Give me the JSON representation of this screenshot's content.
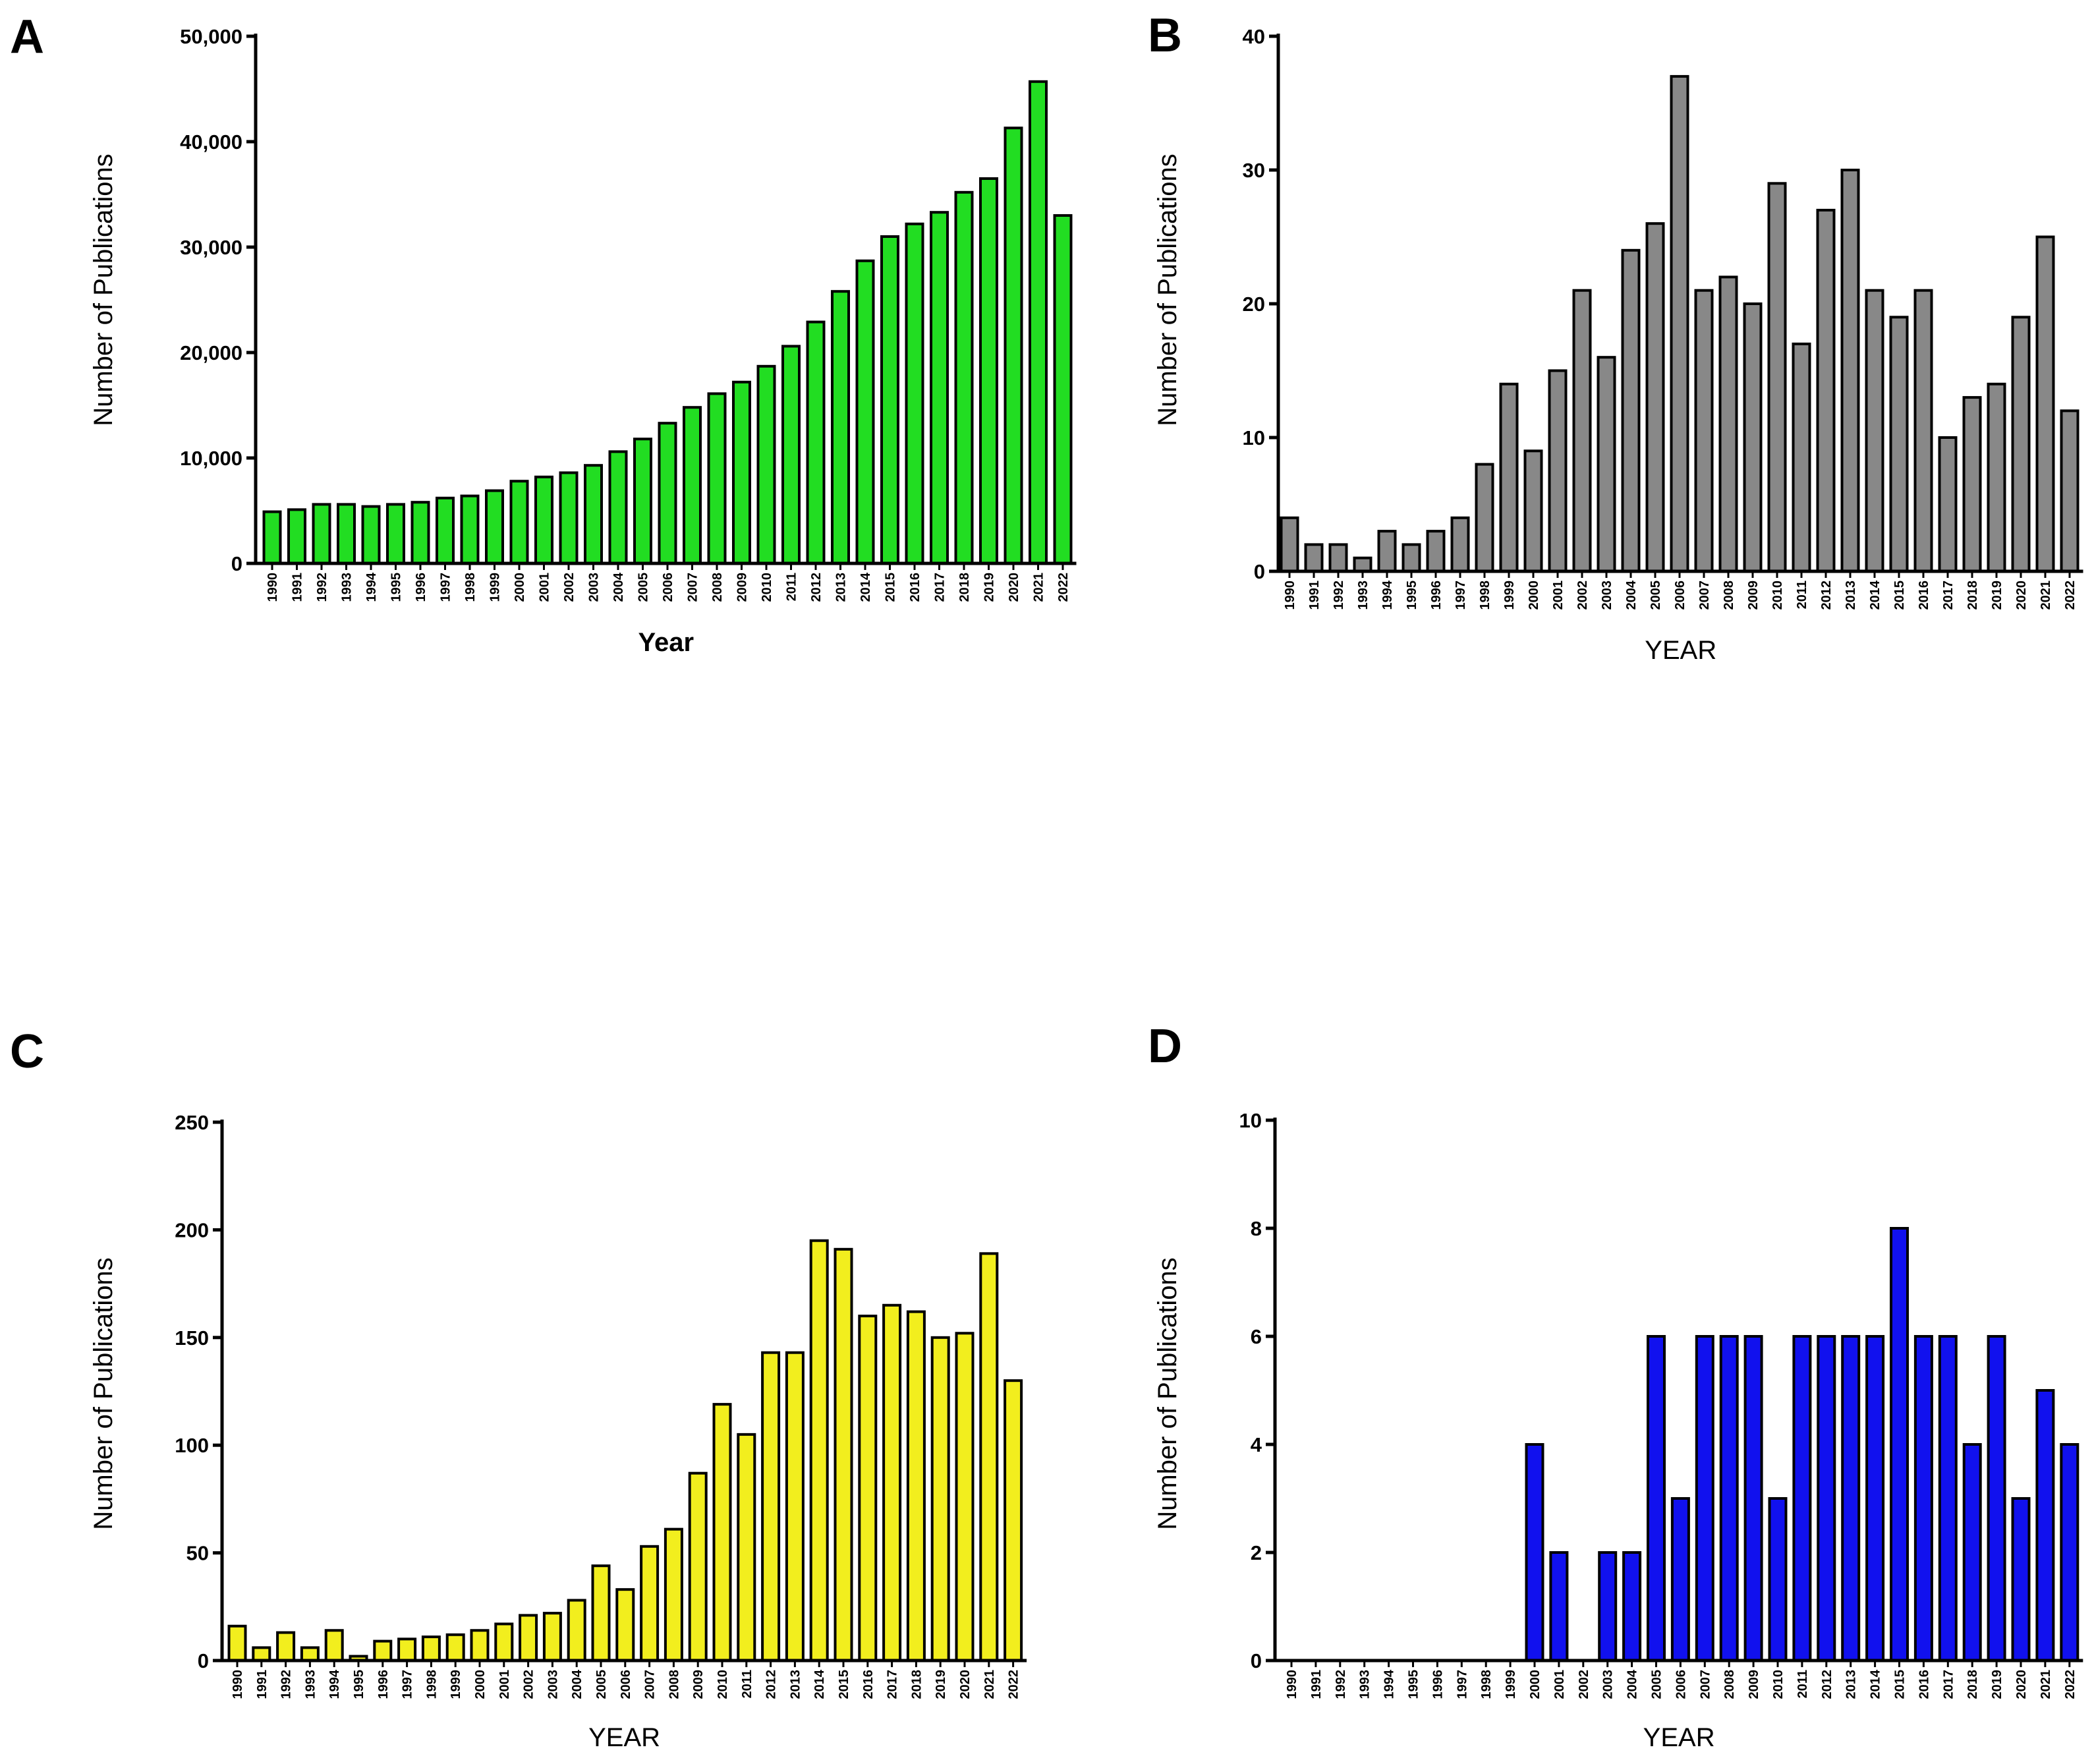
{
  "chart_data": [
    {
      "panel": "A",
      "type": "bar",
      "color": "#22dd22",
      "ylabel": "Number of Publications",
      "xlabel": "Year",
      "ylim": [
        0,
        50000
      ],
      "yticks": [
        0,
        10000,
        20000,
        30000,
        40000,
        50000
      ],
      "ytick_labels": [
        "0",
        "10,000",
        "20,000",
        "30,000",
        "40,000",
        "50,000"
      ],
      "categories": [
        "1990",
        "1991",
        "1992",
        "1993",
        "1994",
        "1995",
        "1996",
        "1997",
        "1998",
        "1999",
        "2000",
        "2001",
        "2002",
        "2003",
        "2004",
        "2005",
        "2006",
        "2007",
        "2008",
        "2009",
        "2010",
        "2011",
        "2012",
        "2013",
        "2014",
        "2015",
        "2016",
        "2017",
        "2018",
        "2019",
        "2020",
        "2021",
        "2022"
      ],
      "values": [
        4900,
        5100,
        5600,
        5600,
        5400,
        5600,
        5800,
        6200,
        6400,
        6900,
        7800,
        8200,
        8600,
        9300,
        10600,
        11800,
        13300,
        14800,
        16100,
        17200,
        18700,
        20600,
        22900,
        25800,
        28700,
        31000,
        32200,
        33300,
        35200,
        36500,
        41300,
        45700,
        33000
      ]
    },
    {
      "panel": "B",
      "type": "bar",
      "color": "#888888",
      "ylabel": "Number of Publications",
      "xlabel": "YEAR",
      "ylim": [
        0,
        40
      ],
      "yticks": [
        0,
        10,
        20,
        30,
        40
      ],
      "ytick_labels": [
        "0",
        "10",
        "20",
        "30",
        "40"
      ],
      "categories": [
        "1990",
        "1991",
        "1992",
        "1993",
        "1994",
        "1995",
        "1996",
        "1997",
        "1998",
        "1999",
        "2000",
        "2001",
        "2002",
        "2003",
        "2004",
        "2005",
        "2006",
        "2007",
        "2008",
        "2009",
        "2010",
        "2011",
        "2012",
        "2013",
        "2014",
        "2015",
        "2016",
        "2017",
        "2018",
        "2019",
        "2020",
        "2021",
        "2022"
      ],
      "values": [
        4,
        2,
        2,
        1,
        3,
        2,
        3,
        4,
        8,
        14,
        9,
        15,
        21,
        16,
        24,
        26,
        37,
        21,
        22,
        20,
        29,
        17,
        27,
        30,
        21,
        19,
        21,
        10,
        13,
        14,
        19,
        25,
        12
      ]
    },
    {
      "panel": "C",
      "type": "bar",
      "color": "#f2ee1e",
      "ylabel": "Number of Publications",
      "xlabel": "YEAR",
      "ylim": [
        0,
        250
      ],
      "yticks": [
        0,
        50,
        100,
        150,
        200,
        250
      ],
      "ytick_labels": [
        "0",
        "50",
        "100",
        "150",
        "200",
        "250"
      ],
      "categories": [
        "1990",
        "1991",
        "1992",
        "1993",
        "1994",
        "1995",
        "1996",
        "1997",
        "1998",
        "1999",
        "2000",
        "2001",
        "2002",
        "2003",
        "2004",
        "2005",
        "2006",
        "2007",
        "2008",
        "2009",
        "2010",
        "2011",
        "2012",
        "2013",
        "2014",
        "2015",
        "2016",
        "2017",
        "2018",
        "2019",
        "2020",
        "2021",
        "2022"
      ],
      "values": [
        16,
        6,
        13,
        6,
        14,
        2,
        9,
        10,
        11,
        12,
        14,
        17,
        21,
        22,
        28,
        44,
        33,
        53,
        61,
        87,
        119,
        105,
        143,
        143,
        195,
        191,
        160,
        165,
        162,
        150,
        152,
        189,
        130
      ]
    },
    {
      "panel": "D",
      "type": "bar",
      "color": "#1111ee",
      "ylabel": "Number of Publications",
      "xlabel": "YEAR",
      "ylim": [
        0,
        10
      ],
      "yticks": [
        0,
        2,
        4,
        6,
        8,
        10
      ],
      "ytick_labels": [
        "0",
        "2",
        "4",
        "6",
        "8",
        "10"
      ],
      "categories": [
        "1990",
        "1991",
        "1992",
        "1993",
        "1994",
        "1995",
        "1996",
        "1997",
        "1998",
        "1999",
        "2000",
        "2001",
        "2002",
        "2003",
        "2004",
        "2005",
        "2006",
        "2007",
        "2008",
        "2009",
        "2010",
        "2011",
        "2012",
        "2013",
        "2014",
        "2015",
        "2016",
        "2017",
        "2018",
        "2019",
        "2020",
        "2021",
        "2022"
      ],
      "values": [
        0,
        0,
        0,
        0,
        0,
        0,
        0,
        0,
        0,
        0,
        4,
        2,
        0,
        2,
        2,
        6,
        3,
        6,
        6,
        6,
        3,
        6,
        6,
        6,
        6,
        8,
        6,
        6,
        4,
        6,
        3,
        5,
        4
      ]
    }
  ]
}
